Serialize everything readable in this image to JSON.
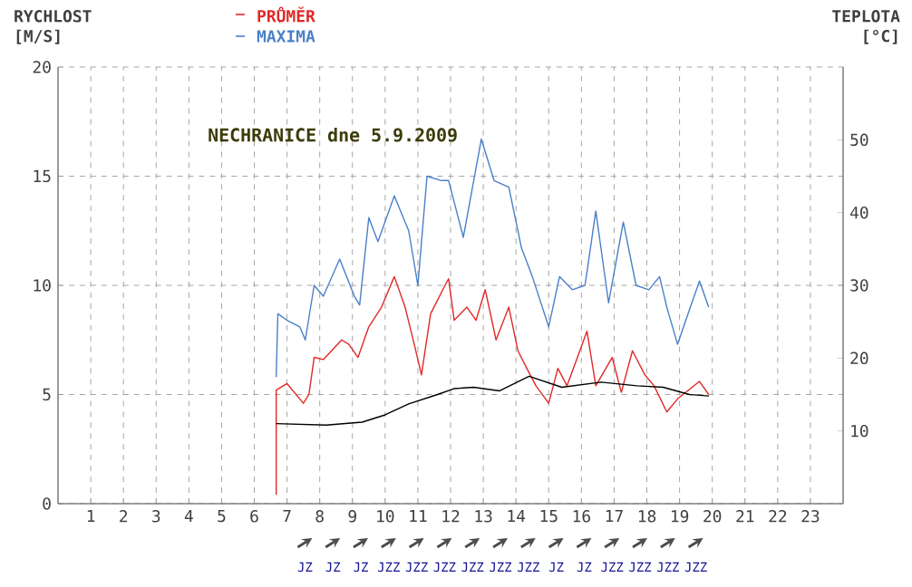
{
  "chart_data": {
    "type": "line",
    "title": "NECHRANICE dne 5.9.2009",
    "ylabel": "RYCHLOST [M/S]",
    "y2label": "TEPLOTA [°C]",
    "xlim": [
      0,
      24
    ],
    "xticks": [
      1,
      2,
      3,
      4,
      5,
      6,
      7,
      8,
      9,
      10,
      11,
      12,
      13,
      14,
      15,
      16,
      17,
      18,
      19,
      20,
      21,
      22,
      23
    ],
    "ylim": [
      0,
      20
    ],
    "yticks": [
      0,
      5,
      10,
      15,
      20
    ],
    "y2lim": [
      0,
      60
    ],
    "y2ticks": [
      10,
      20,
      30,
      40,
      50
    ],
    "grid": true,
    "legend": "top",
    "marker": "none",
    "line_style": "solid",
    "series": [
      {
        "name": "PRŮMĚR",
        "color": "#e02828",
        "x": [
          6.67,
          6.67,
          7.0,
          7.5,
          7.67,
          7.83,
          8.11,
          8.67,
          8.89,
          9.17,
          9.5,
          9.89,
          10.28,
          10.61,
          10.89,
          11.11,
          11.39,
          11.83,
          11.94,
          12.11,
          12.5,
          12.78,
          13.06,
          13.39,
          13.78,
          14.06,
          14.33,
          14.61,
          15.0,
          15.28,
          15.56,
          15.83,
          16.17,
          16.44,
          16.94,
          17.22,
          17.56,
          17.94,
          18.22,
          18.61,
          18.94,
          19.61,
          19.89
        ],
        "values": [
          0.4,
          5.2,
          5.5,
          4.6,
          5.0,
          6.7,
          6.6,
          7.5,
          7.3,
          6.7,
          8.1,
          9.0,
          10.4,
          9.0,
          7.3,
          5.9,
          8.7,
          10.0,
          10.3,
          8.4,
          9.0,
          8.4,
          9.8,
          7.5,
          9.0,
          7.0,
          6.2,
          5.4,
          4.6,
          6.2,
          5.4,
          6.5,
          7.9,
          5.4,
          6.7,
          5.1,
          7.0,
          5.9,
          5.4,
          4.2,
          4.8,
          5.6,
          5.0
        ]
      },
      {
        "name": "MAXIMA",
        "color": "#4a7fc8",
        "x": [
          6.67,
          6.72,
          7.0,
          7.39,
          7.56,
          7.83,
          8.11,
          8.61,
          9.06,
          9.22,
          9.5,
          9.78,
          10.28,
          10.72,
          11.0,
          11.28,
          11.72,
          11.94,
          12.39,
          12.94,
          13.33,
          13.78,
          14.17,
          14.5,
          15.0,
          15.33,
          15.72,
          16.11,
          16.44,
          16.83,
          17.28,
          17.67,
          18.06,
          18.39,
          18.61,
          18.94,
          19.33,
          19.61,
          19.89
        ],
        "values": [
          5.8,
          8.7,
          8.4,
          8.1,
          7.5,
          10.0,
          9.5,
          11.2,
          9.5,
          9.1,
          13.1,
          12.0,
          14.1,
          12.5,
          10.0,
          15.0,
          14.8,
          14.8,
          12.2,
          16.7,
          14.8,
          14.5,
          11.7,
          10.4,
          8.1,
          10.4,
          9.8,
          10.0,
          13.4,
          9.2,
          12.9,
          10.0,
          9.8,
          10.4,
          9.0,
          7.3,
          9.0,
          10.2,
          9.0
        ]
      },
      {
        "color": "#000000",
        "axis": "y2",
        "x": [
          6.67,
          8.2,
          9.3,
          10.0,
          10.72,
          11.6,
          12.1,
          12.7,
          13.5,
          14.4,
          15.4,
          16.6,
          17.7,
          18.5,
          19.3,
          19.9
        ],
        "values": [
          11,
          10.8,
          11.2,
          12.2,
          13.7,
          15,
          15.8,
          16,
          15.5,
          17.5,
          16,
          16.7,
          16.2,
          16,
          15,
          14.8
        ]
      }
    ],
    "annotations": [
      "JZ",
      "JZ",
      "JZ",
      "JZZ",
      "JZZ",
      "JZZ",
      "JZZ",
      "JZZ",
      "JZZ",
      "JZ",
      "JZ",
      "JZZ",
      "JZZ",
      "JZZ",
      "JZZ"
    ]
  }
}
